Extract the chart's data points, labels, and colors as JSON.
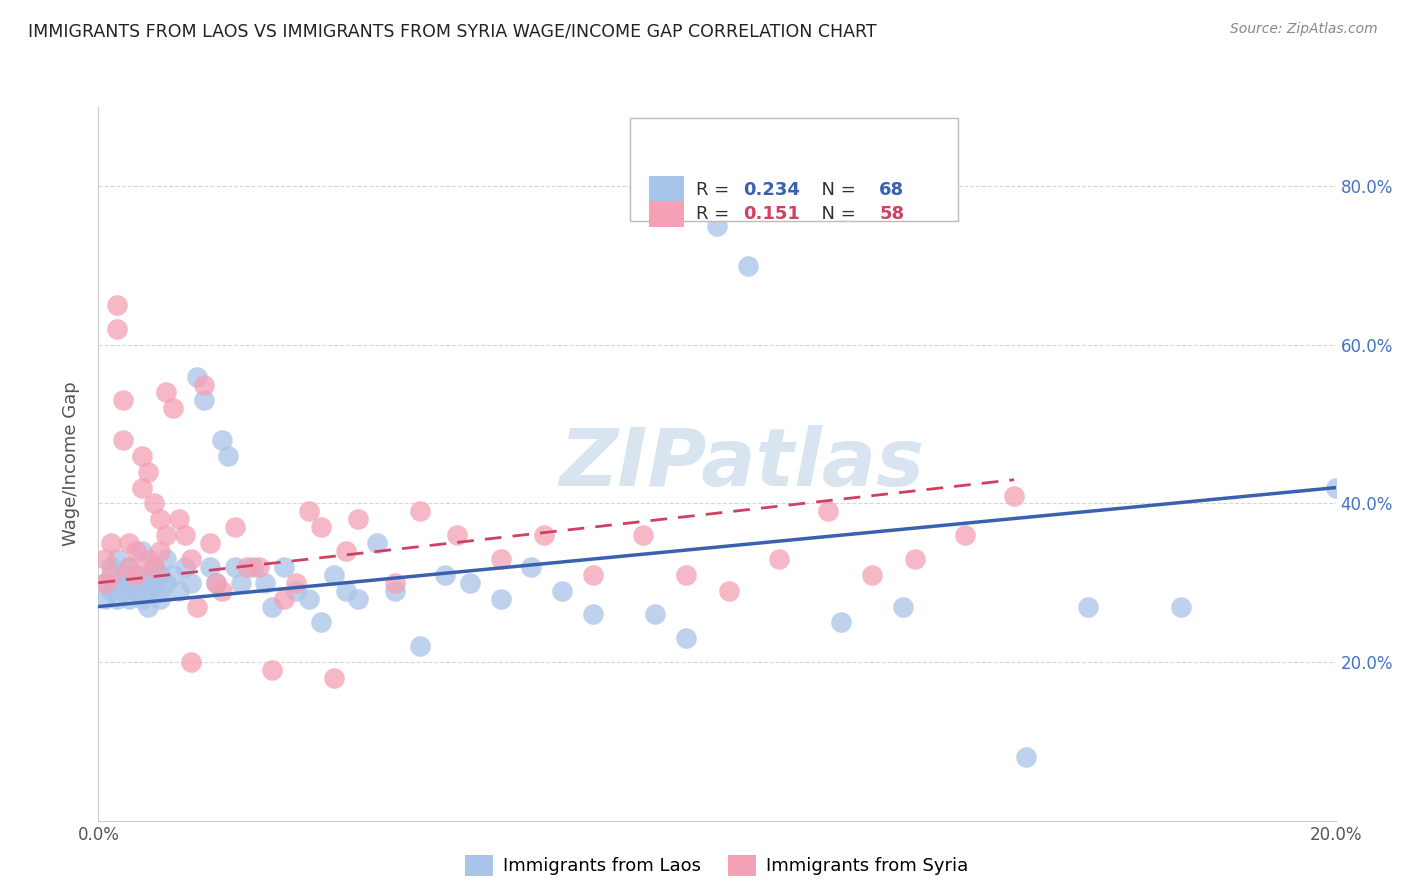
{
  "title": "IMMIGRANTS FROM LAOS VS IMMIGRANTS FROM SYRIA WAGE/INCOME GAP CORRELATION CHART",
  "source": "Source: ZipAtlas.com",
  "ylabel": "Wage/Income Gap",
  "xlim": [
    0.0,
    0.2
  ],
  "ylim": [
    0.0,
    0.9
  ],
  "laos_color": "#a8c4e8",
  "syria_color": "#f4a0b5",
  "laos_R": 0.234,
  "laos_N": 68,
  "syria_R": 0.151,
  "syria_N": 58,
  "laos_line_color": "#3a60b0",
  "syria_line_color": "#d04060",
  "watermark": "ZIPatlas",
  "watermark_color": "#d8e4f0",
  "background_color": "#ffffff",
  "grid_color": "#cccccc",
  "title_color": "#222222",
  "laos_x": [
    0.001,
    0.001,
    0.002,
    0.002,
    0.003,
    0.003,
    0.003,
    0.004,
    0.004,
    0.005,
    0.005,
    0.005,
    0.006,
    0.006,
    0.007,
    0.007,
    0.007,
    0.008,
    0.008,
    0.008,
    0.009,
    0.009,
    0.01,
    0.01,
    0.01,
    0.011,
    0.011,
    0.012,
    0.013,
    0.014,
    0.015,
    0.016,
    0.017,
    0.018,
    0.019,
    0.02,
    0.021,
    0.022,
    0.023,
    0.025,
    0.027,
    0.028,
    0.03,
    0.032,
    0.034,
    0.036,
    0.038,
    0.04,
    0.042,
    0.045,
    0.048,
    0.052,
    0.056,
    0.06,
    0.065,
    0.07,
    0.075,
    0.08,
    0.09,
    0.095,
    0.1,
    0.105,
    0.12,
    0.13,
    0.15,
    0.16,
    0.175,
    0.2
  ],
  "laos_y": [
    0.3,
    0.28,
    0.32,
    0.29,
    0.3,
    0.28,
    0.33,
    0.31,
    0.29,
    0.3,
    0.28,
    0.32,
    0.31,
    0.29,
    0.3,
    0.28,
    0.34,
    0.31,
    0.29,
    0.27,
    0.3,
    0.32,
    0.29,
    0.31,
    0.28,
    0.3,
    0.33,
    0.31,
    0.29,
    0.32,
    0.3,
    0.56,
    0.53,
    0.32,
    0.3,
    0.48,
    0.46,
    0.32,
    0.3,
    0.32,
    0.3,
    0.27,
    0.32,
    0.29,
    0.28,
    0.25,
    0.31,
    0.29,
    0.28,
    0.35,
    0.29,
    0.22,
    0.31,
    0.3,
    0.28,
    0.32,
    0.29,
    0.26,
    0.26,
    0.23,
    0.75,
    0.7,
    0.25,
    0.27,
    0.08,
    0.27,
    0.27,
    0.42
  ],
  "syria_x": [
    0.001,
    0.001,
    0.002,
    0.002,
    0.003,
    0.003,
    0.004,
    0.004,
    0.005,
    0.005,
    0.006,
    0.006,
    0.007,
    0.007,
    0.008,
    0.008,
    0.009,
    0.009,
    0.01,
    0.01,
    0.011,
    0.011,
    0.012,
    0.013,
    0.014,
    0.015,
    0.015,
    0.016,
    0.017,
    0.018,
    0.019,
    0.02,
    0.022,
    0.024,
    0.026,
    0.028,
    0.03,
    0.032,
    0.034,
    0.036,
    0.038,
    0.04,
    0.042,
    0.048,
    0.052,
    0.058,
    0.065,
    0.072,
    0.08,
    0.088,
    0.095,
    0.102,
    0.11,
    0.118,
    0.125,
    0.132,
    0.14,
    0.148
  ],
  "syria_y": [
    0.33,
    0.3,
    0.35,
    0.31,
    0.65,
    0.62,
    0.53,
    0.48,
    0.35,
    0.32,
    0.34,
    0.31,
    0.46,
    0.42,
    0.44,
    0.33,
    0.32,
    0.4,
    0.38,
    0.34,
    0.36,
    0.54,
    0.52,
    0.38,
    0.36,
    0.33,
    0.2,
    0.27,
    0.55,
    0.35,
    0.3,
    0.29,
    0.37,
    0.32,
    0.32,
    0.19,
    0.28,
    0.3,
    0.39,
    0.37,
    0.18,
    0.34,
    0.38,
    0.3,
    0.39,
    0.36,
    0.33,
    0.36,
    0.31,
    0.36,
    0.31,
    0.29,
    0.33,
    0.39,
    0.31,
    0.33,
    0.36,
    0.41
  ],
  "laos_line_start_x": 0.0,
  "laos_line_end_x": 0.2,
  "syria_line_start_x": 0.0,
  "syria_line_end_x": 0.148
}
